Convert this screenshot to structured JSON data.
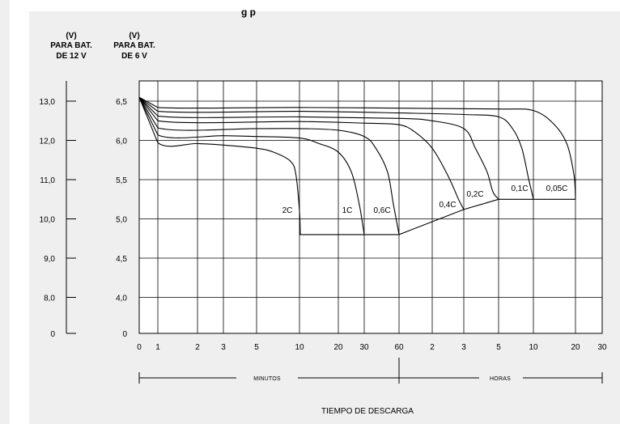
{
  "page": {
    "title_fragment": "g p"
  },
  "chart_data": {
    "type": "line",
    "title": "",
    "axes": {
      "left_header": [
        "(V)",
        "PARA BAT.",
        "DE 12 V"
      ],
      "right_header": [
        "(V)",
        "PARA BAT.",
        "DE 6 V"
      ],
      "left_ticks": [
        "13,0",
        "12,0",
        "11,0",
        "10,0",
        "9,0",
        "8,0",
        "0"
      ],
      "right_ticks": [
        "6,5",
        "6,0",
        "5,5",
        "5,0",
        "4,5",
        "4,0",
        "0"
      ],
      "right_values": [
        6.5,
        6.0,
        5.5,
        5.0,
        4.5,
        4.0
      ],
      "ylim": [
        4.0,
        7.0
      ],
      "x_tick_labels": [
        "0",
        "1",
        "2",
        "3",
        "5",
        "10",
        "20",
        "30",
        "60",
        "2",
        "3",
        "5",
        "10",
        "20",
        "30"
      ],
      "x_minutes": [
        0,
        1,
        2,
        3,
        5,
        10,
        20,
        30,
        60,
        120,
        180,
        300,
        600,
        1200,
        1800
      ],
      "x_units": [
        "MINUTOS",
        "HORAS"
      ],
      "xlabel": "TIEMPO DE DESCARGA",
      "grid": true
    },
    "series": [
      {
        "name": "2C",
        "label": "2C",
        "points": [
          [
            0,
            6.55
          ],
          [
            1,
            5.97
          ],
          [
            2,
            5.96
          ],
          [
            3,
            5.94
          ],
          [
            5,
            5.9
          ],
          [
            7,
            5.85
          ],
          [
            9,
            5.73
          ],
          [
            9.6,
            5.55
          ],
          [
            10,
            5.1
          ],
          [
            10.2,
            4.8
          ]
        ]
      },
      {
        "name": "1C",
        "label": "1C",
        "points": [
          [
            0,
            6.55
          ],
          [
            1,
            6.07
          ],
          [
            3,
            6.06
          ],
          [
            5,
            6.05
          ],
          [
            10,
            6.03
          ],
          [
            15,
            5.96
          ],
          [
            20,
            5.85
          ],
          [
            25,
            5.6
          ],
          [
            28,
            5.2
          ],
          [
            30,
            4.8
          ]
        ]
      },
      {
        "name": "0,6C",
        "label": "0,6C",
        "points": [
          [
            0,
            6.55
          ],
          [
            1,
            6.16
          ],
          [
            5,
            6.15
          ],
          [
            10,
            6.15
          ],
          [
            20,
            6.13
          ],
          [
            30,
            6.05
          ],
          [
            40,
            5.9
          ],
          [
            50,
            5.6
          ],
          [
            55,
            5.2
          ],
          [
            60,
            4.8
          ]
        ]
      },
      {
        "name": "0,4C",
        "label": "0,4C",
        "points": [
          [
            0,
            6.55
          ],
          [
            1,
            6.25
          ],
          [
            10,
            6.24
          ],
          [
            30,
            6.22
          ],
          [
            60,
            6.2
          ],
          [
            90,
            6.1
          ],
          [
            120,
            5.9
          ],
          [
            150,
            5.55
          ],
          [
            170,
            5.25
          ],
          [
            180,
            5.12
          ]
        ]
      },
      {
        "name": "0,2C",
        "label": "0,2C",
        "points": [
          [
            0,
            6.55
          ],
          [
            1,
            6.31
          ],
          [
            10,
            6.3
          ],
          [
            60,
            6.28
          ],
          [
            120,
            6.25
          ],
          [
            180,
            6.15
          ],
          [
            220,
            5.9
          ],
          [
            260,
            5.6
          ],
          [
            280,
            5.35
          ],
          [
            300,
            5.25
          ]
        ]
      },
      {
        "name": "0,1C",
        "label": "0,1C",
        "points": [
          [
            0,
            6.55
          ],
          [
            1,
            6.37
          ],
          [
            10,
            6.37
          ],
          [
            60,
            6.35
          ],
          [
            180,
            6.33
          ],
          [
            300,
            6.3
          ],
          [
            420,
            6.15
          ],
          [
            500,
            5.9
          ],
          [
            560,
            5.5
          ],
          [
            600,
            5.25
          ]
        ]
      },
      {
        "name": "0,05C",
        "label": "0,05C",
        "points": [
          [
            0,
            6.55
          ],
          [
            1,
            6.42
          ],
          [
            10,
            6.42
          ],
          [
            60,
            6.41
          ],
          [
            300,
            6.4
          ],
          [
            600,
            6.38
          ],
          [
            900,
            6.2
          ],
          [
            1080,
            5.95
          ],
          [
            1180,
            5.55
          ],
          [
            1200,
            5.25
          ]
        ]
      }
    ],
    "end_voltage_line": {
      "points": [
        [
          10,
          4.8
        ],
        [
          60,
          4.8
        ],
        [
          180,
          5.12
        ],
        [
          300,
          5.25
        ],
        [
          1200,
          5.25
        ]
      ]
    }
  }
}
